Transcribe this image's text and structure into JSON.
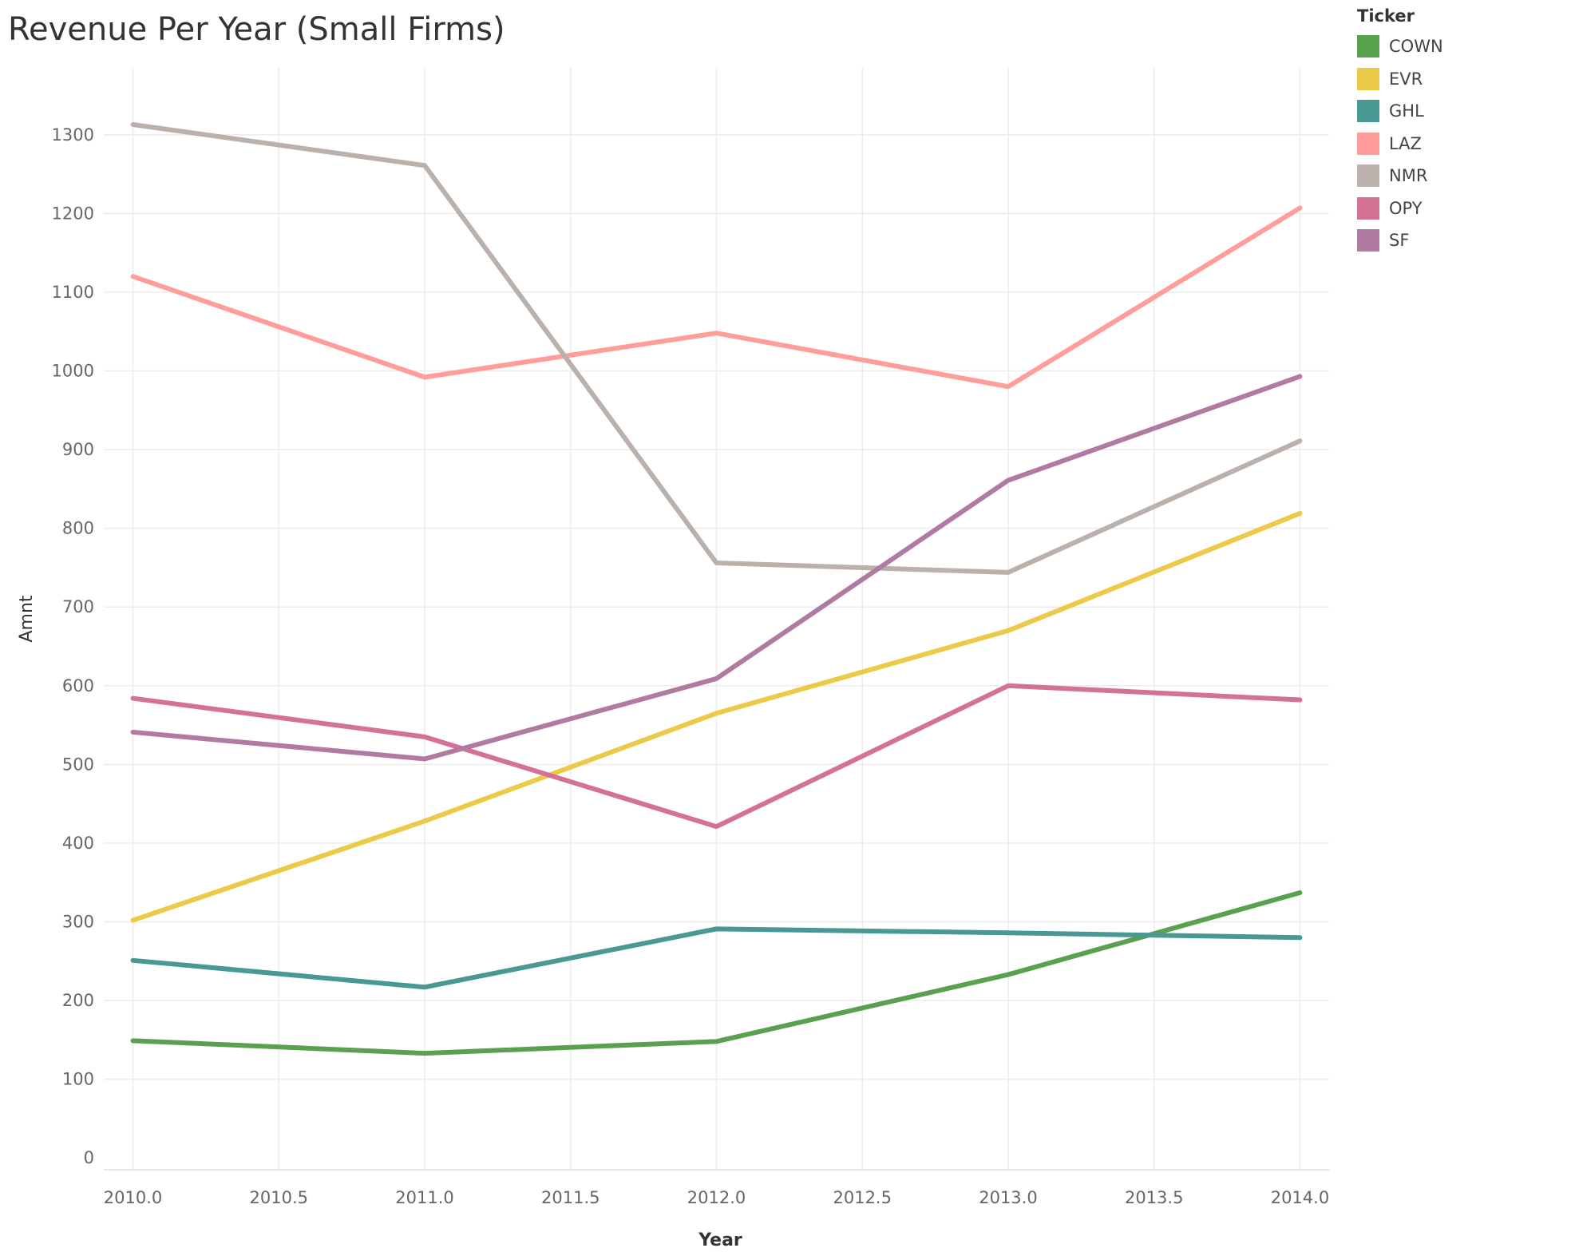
{
  "chart_data": {
    "type": "line",
    "title": "Revenue Per Year (Small Firms)",
    "xlabel": "Year",
    "ylabel": "Amnt",
    "xlim": [
      2009.9,
      2014.1
    ],
    "ylim": [
      -15,
      1385
    ],
    "x_ticks": [
      "2010.0",
      "2010.5",
      "2011.0",
      "2011.5",
      "2012.0",
      "2012.5",
      "2013.0",
      "2013.5",
      "2014.0"
    ],
    "y_ticks": [
      "0",
      "100",
      "200",
      "300",
      "400",
      "500",
      "600",
      "700",
      "800",
      "900",
      "1000",
      "1100",
      "1200",
      "1300"
    ],
    "grid": true,
    "legend_title": "Ticker",
    "legend_position": "top-right",
    "x": [
      2010,
      2011,
      2012,
      2013,
      2014
    ],
    "series": [
      {
        "name": "COWN",
        "color": "#59A14F",
        "values": [
          149,
          133,
          148,
          233,
          337
        ]
      },
      {
        "name": "EVR",
        "color": "#EDC948",
        "values": [
          302,
          428,
          565,
          670,
          819
        ]
      },
      {
        "name": "GHL",
        "color": "#499894",
        "values": [
          251,
          217,
          291,
          286,
          280
        ]
      },
      {
        "name": "LAZ",
        "color": "#FF9D9A",
        "values": [
          1120,
          992,
          1048,
          980,
          1207
        ]
      },
      {
        "name": "NMR",
        "color": "#BAB0AC",
        "values": [
          1313,
          1261,
          756,
          744,
          911
        ]
      },
      {
        "name": "OPY",
        "color": "#D37295",
        "values": [
          584,
          535,
          421,
          600,
          582
        ]
      },
      {
        "name": "SF",
        "color": "#B07AA1",
        "values": [
          541,
          507,
          609,
          861,
          993
        ]
      }
    ]
  }
}
